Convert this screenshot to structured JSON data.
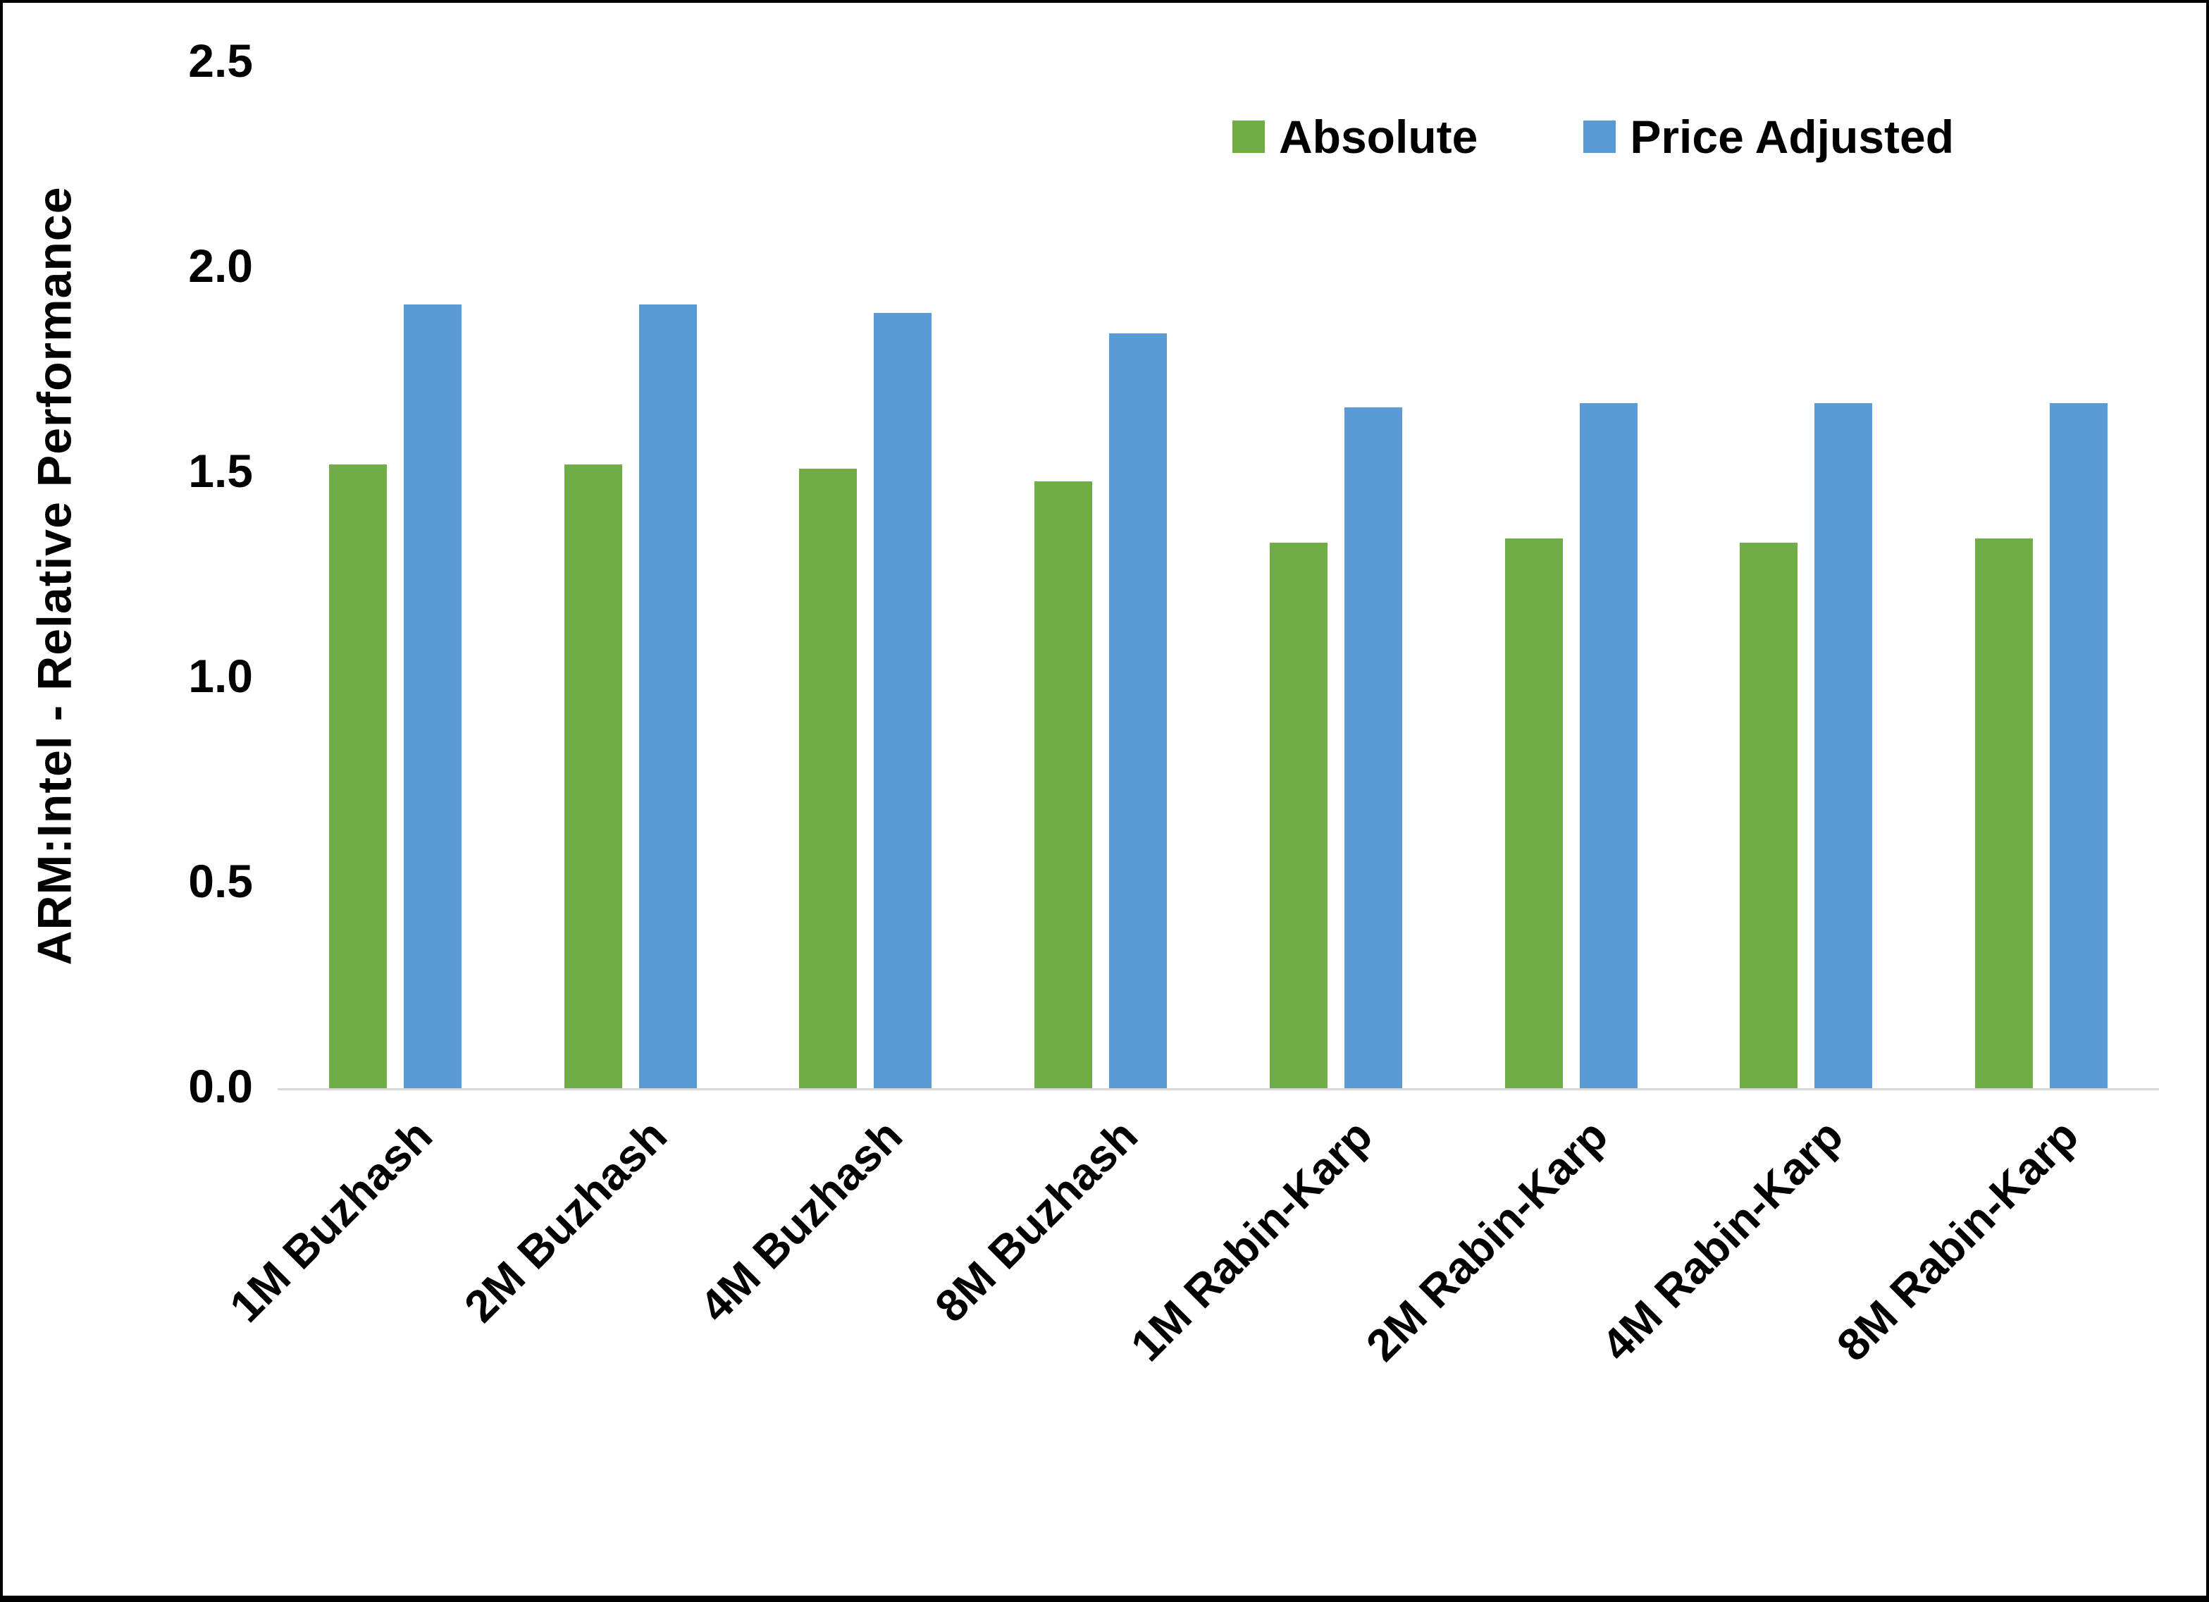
{
  "chart_data": {
    "type": "bar",
    "title": "",
    "xlabel": "",
    "ylabel": "ARM:Intel - Relative Performance",
    "ylim": [
      0,
      2.5
    ],
    "ytick_step": 0.5,
    "ytick_labels": [
      "0.0",
      "0.5",
      "1.0",
      "1.5",
      "2.0",
      "2.5"
    ],
    "grid": false,
    "legend_position": "top-right",
    "background_color": "#FFFFFF",
    "axis_line_color": "#D9D9D9",
    "text_color": "#000000",
    "categories": [
      "1M Buzhash",
      "2M Buzhash",
      "4M Buzhash",
      "8M Buzhash",
      "1M Rabin-Karp",
      "2M Rabin-Karp",
      "4M Rabin-Karp",
      "8M Rabin-Karp"
    ],
    "series": [
      {
        "name": "Absolute",
        "color": "#70AD47",
        "values": [
          1.52,
          1.52,
          1.51,
          1.48,
          1.33,
          1.34,
          1.33,
          1.34
        ]
      },
      {
        "name": "Price Adjusted",
        "color": "#5B9BD5",
        "values": [
          1.91,
          1.91,
          1.89,
          1.84,
          1.66,
          1.67,
          1.67,
          1.67
        ]
      }
    ]
  }
}
